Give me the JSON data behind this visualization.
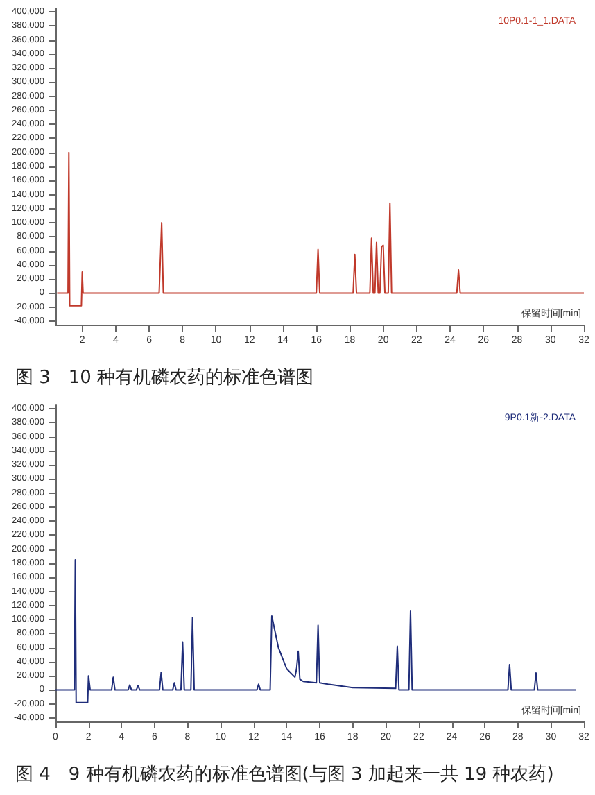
{
  "chart_data": [
    {
      "type": "line",
      "title": "图 3　10 种有机磷农药的标准色谱图",
      "xlabel": "保留时间[min]",
      "annotations": [
        "10P0.1-1_1.DATA"
      ],
      "marker": "none",
      "xlim": [
        0.4,
        32
      ],
      "xticks": [
        2,
        4,
        6,
        8,
        10,
        12,
        14,
        16,
        18,
        20,
        22,
        24,
        26,
        28,
        30,
        32
      ],
      "ylim": [
        -45000,
        405000
      ],
      "yticks": [
        {
          "value": -40000,
          "label": "-40,000"
        },
        {
          "value": -20000,
          "label": "-20,000"
        },
        0,
        {
          "value": 20000,
          "label": "20,000"
        },
        {
          "value": 40000,
          "label": "40,000"
        },
        {
          "value": 60000,
          "label": "60,000"
        },
        {
          "value": 80000,
          "label": "80,000"
        },
        {
          "value": 100000,
          "label": "100,000"
        },
        {
          "value": 120000,
          "label": "120,000"
        },
        {
          "value": 140000,
          "label": "140,000"
        },
        {
          "value": 160000,
          "label": "160,000"
        },
        {
          "value": 180000,
          "label": "180,000"
        },
        {
          "value": 200000,
          "label": "200,000"
        },
        {
          "value": 220000,
          "label": "220,000"
        },
        {
          "value": 240000,
          "label": "240,000"
        },
        {
          "value": 260000,
          "label": "260,000"
        },
        {
          "value": 280000,
          "label": "280,000"
        },
        {
          "value": 300000,
          "label": "300,000"
        },
        {
          "value": 320000,
          "label": "320,000"
        },
        {
          "value": 340000,
          "label": "340,000"
        },
        {
          "value": 360000,
          "label": "360,000"
        },
        {
          "value": 380000,
          "label": "380,000"
        },
        {
          "value": 400000,
          "label": "400,000"
        }
      ],
      "series": [
        {
          "color": "#c0392b",
          "x": [
            0.5,
            1.15,
            1.2,
            1.25,
            1.95,
            2.0,
            2.05,
            2.2,
            6.6,
            6.75,
            6.85,
            16.0,
            16.1,
            16.2,
            18.2,
            18.3,
            18.4,
            19.2,
            19.3,
            19.4,
            19.5,
            19.6,
            19.7,
            19.8,
            19.9,
            20.0,
            20.1,
            20.3,
            20.4,
            20.5,
            24.4,
            24.5,
            24.6,
            32
          ],
          "values": [
            0,
            0,
            200000,
            -18000,
            -18000,
            30000,
            0,
            0,
            0,
            100000,
            0,
            0,
            62000,
            0,
            0,
            55000,
            0,
            0,
            78000,
            0,
            0,
            72000,
            0,
            0,
            66000,
            68000,
            0,
            0,
            128000,
            0,
            0,
            33000,
            0,
            0
          ]
        }
      ]
    },
    {
      "type": "line",
      "title": "图 4　9 种有机磷农药的标准色谱图(与图 3 加起来一共 19 种农药)",
      "xlabel": "保留时间[min]",
      "annotations": [
        "9P0.1新-2.DATA"
      ],
      "marker": "none",
      "xlim": [
        0,
        32
      ],
      "xticks": [
        0,
        2,
        4,
        6,
        8,
        10,
        12,
        14,
        16,
        18,
        20,
        22,
        24,
        26,
        28,
        30,
        32
      ],
      "ylim": [
        -45000,
        405000
      ],
      "yticks": [
        {
          "value": -40000,
          "label": "-40,000"
        },
        {
          "value": -20000,
          "label": "-20,000"
        },
        0,
        {
          "value": 20000,
          "label": "20,000"
        },
        {
          "value": 40000,
          "label": "40,000"
        },
        {
          "value": 60000,
          "label": "60,000"
        },
        {
          "value": 80000,
          "label": "80,000"
        },
        {
          "value": 100000,
          "label": "100,000"
        },
        {
          "value": 120000,
          "label": "120,000"
        },
        {
          "value": 140000,
          "label": "140,000"
        },
        {
          "value": 160000,
          "label": "160,000"
        },
        {
          "value": 180000,
          "label": "180,000"
        },
        {
          "value": 200000,
          "label": "200,000"
        },
        {
          "value": 220000,
          "label": "220,000"
        },
        {
          "value": 240000,
          "label": "240,000"
        },
        {
          "value": 260000,
          "label": "260,000"
        },
        {
          "value": 280000,
          "label": "280,000"
        },
        {
          "value": 300000,
          "label": "300,000"
        },
        {
          "value": 320000,
          "label": "320,000"
        },
        {
          "value": 340000,
          "label": "340,000"
        },
        {
          "value": 360000,
          "label": "360,000"
        },
        {
          "value": 380000,
          "label": "380,000"
        },
        {
          "value": 400000,
          "label": "400,000"
        }
      ],
      "series": [
        {
          "color": "#1f2d7a",
          "x": [
            0,
            1.15,
            1.2,
            1.25,
            1.95,
            2.0,
            2.1,
            3.4,
            3.5,
            3.6,
            4.4,
            4.5,
            4.6,
            4.9,
            5.0,
            5.1,
            6.3,
            6.4,
            6.5,
            7.1,
            7.2,
            7.3,
            7.6,
            7.7,
            7.8,
            8.2,
            8.3,
            8.4,
            12.2,
            12.3,
            12.4,
            13.0,
            13.1,
            13.5,
            14.0,
            14.5,
            14.6,
            14.7,
            14.8,
            15.0,
            15.8,
            15.9,
            16.0,
            16.5,
            18.0,
            20.6,
            20.7,
            20.8,
            21.4,
            21.5,
            21.6,
            27.4,
            27.5,
            27.6,
            29.0,
            29.1,
            29.2,
            31.5
          ],
          "values": [
            0,
            0,
            185000,
            -18000,
            -18000,
            20000,
            0,
            0,
            18000,
            0,
            0,
            7000,
            0,
            0,
            6000,
            0,
            0,
            25000,
            0,
            0,
            10000,
            0,
            0,
            68000,
            0,
            0,
            103000,
            0,
            0,
            8000,
            0,
            0,
            105000,
            60000,
            30000,
            18000,
            30000,
            55000,
            15000,
            12000,
            10000,
            92000,
            10000,
            8000,
            3000,
            2000,
            62000,
            0,
            0,
            112000,
            0,
            0,
            36000,
            0,
            0,
            24000,
            0,
            0
          ]
        }
      ]
    }
  ]
}
